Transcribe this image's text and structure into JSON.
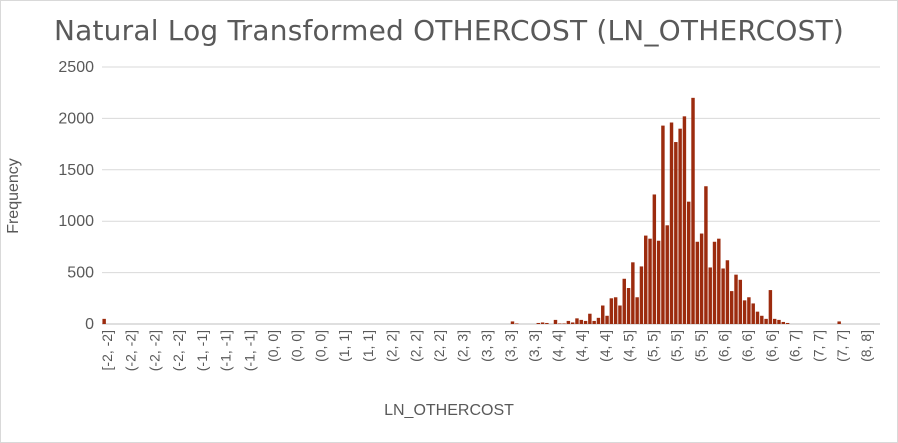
{
  "chart_data": {
    "type": "bar",
    "title": "Natural Log Transformed OTHERCOST (LN_OTHERCOST)",
    "xlabel": "LN_OTHERCOST",
    "ylabel": "Frequency",
    "ylim": [
      0,
      2500
    ],
    "yticks": [
      0,
      500,
      1000,
      1500,
      2000,
      2500
    ],
    "grid": true,
    "legend": "none",
    "bar_color": "#9C2B0E",
    "tick_labels": [
      "[-2, -2]",
      "(-2, -2]",
      "(-2, -2]",
      "(-2, -2]",
      "(-1, -1]",
      "(-1, -1]",
      "(-1, -1]",
      "(0, 0]",
      "(0, 0]",
      "(0, 0]",
      "(1, 1]",
      "(1, 1]",
      "(2, 2]",
      "(2, 2]",
      "(2, 2]",
      "(2, 3]",
      "(3, 3]",
      "(3, 3]",
      "(3, 3]",
      "(4, 4]",
      "(4, 4]",
      "(4, 4]",
      "(4, 5]",
      "(5, 5]",
      "(5, 5]",
      "(5, 5]",
      "(6, 6]",
      "(6, 6]",
      "(6, 6]",
      "(6, 7]",
      "(7, 7]",
      "(7, 7]",
      "(8, 8]"
    ],
    "values": [
      50,
      0,
      0,
      0,
      0,
      0,
      0,
      0,
      0,
      0,
      0,
      0,
      0,
      0,
      0,
      0,
      0,
      0,
      0,
      0,
      0,
      0,
      0,
      0,
      0,
      0,
      0,
      0,
      0,
      0,
      0,
      0,
      0,
      0,
      0,
      0,
      0,
      0,
      0,
      0,
      0,
      0,
      0,
      0,
      0,
      0,
      0,
      0,
      0,
      0,
      0,
      0,
      0,
      0,
      0,
      0,
      0,
      0,
      0,
      0,
      0,
      0,
      0,
      0,
      0,
      0,
      0,
      0,
      0,
      0,
      0,
      0,
      0,
      0,
      0,
      0,
      0,
      0,
      0,
      0,
      0,
      0,
      0,
      0,
      0,
      0,
      0,
      0,
      0,
      0,
      0,
      0,
      0,
      0,
      0,
      25,
      5,
      0,
      0,
      0,
      0,
      10,
      15,
      10,
      0,
      40,
      5,
      5,
      30,
      15,
      55,
      40,
      30,
      100,
      30,
      60,
      180,
      80,
      250,
      260,
      180,
      440,
      350,
      600,
      260,
      560,
      860,
      830,
      1260,
      810,
      1930,
      960,
      1960,
      1770,
      1900,
      2020,
      1190,
      2200,
      800,
      880,
      1340,
      550,
      800,
      830,
      540,
      620,
      320,
      480,
      430,
      230,
      260,
      200,
      120,
      80,
      50,
      330,
      50,
      40,
      20,
      10,
      0,
      0,
      0,
      0,
      0,
      0,
      0,
      0,
      0,
      0,
      0,
      25,
      0,
      0,
      0,
      0,
      0,
      0,
      0,
      0,
      0
    ]
  }
}
